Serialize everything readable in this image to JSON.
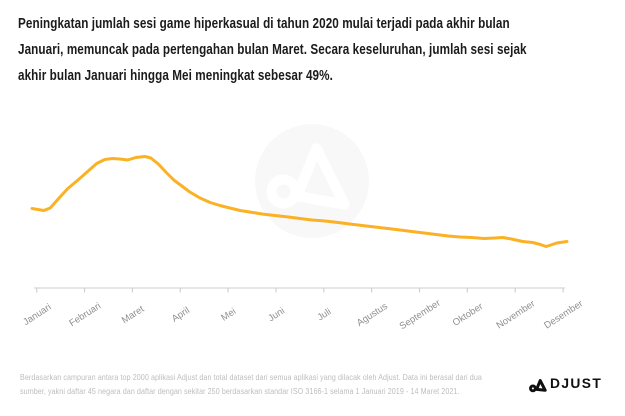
{
  "header": {
    "lines": [
      "Peningkatan jumlah sesi game hiperkasual di tahun 2020 mulai terjadi pada akhir bulan",
      "Januari, memuncak pada pertengahan bulan Maret. Secara keseluruhan, jumlah sesi sejak",
      "akhir bulan Januari hingga Mei meningkat sebesar 49%."
    ]
  },
  "chart_data": {
    "type": "line",
    "title": "Peningkatan jumlah sesi game hiperkasual di tahun 2020 mulai terjadi pada akhir bulan Januari, memuncak pada pertengahan bulan Maret. Secara keseluruhan, jumlah sesi sejak akhir bulan Januari hingga Mei meningkat sebesar 49%.",
    "categories": [
      "Januari",
      "Februari",
      "Maret",
      "April",
      "Mei",
      "Juni",
      "Juli",
      "Agustus",
      "September",
      "Oktober",
      "November",
      "Desember"
    ],
    "xlabel": "",
    "ylabel": "",
    "y_axis_visible": false,
    "y_unit": "relative session index (no y-axis labels shown in figure)",
    "grid": false,
    "legend": "none",
    "series": [
      {
        "name": "Sesi game hiperkasual",
        "color": "#FBB124",
        "points": [
          [
            0.0,
            79.5
          ],
          [
            0.011,
            78.5
          ],
          [
            0.022,
            77.5
          ],
          [
            0.034,
            80
          ],
          [
            0.049,
            89
          ],
          [
            0.067,
            99.5
          ],
          [
            0.086,
            108
          ],
          [
            0.105,
            117
          ],
          [
            0.121,
            124.5
          ],
          [
            0.136,
            128.5
          ],
          [
            0.15,
            129.5
          ],
          [
            0.164,
            129
          ],
          [
            0.179,
            128
          ],
          [
            0.194,
            130.5
          ],
          [
            0.211,
            131.5
          ],
          [
            0.222,
            130
          ],
          [
            0.236,
            124
          ],
          [
            0.25,
            116
          ],
          [
            0.265,
            108
          ],
          [
            0.28,
            102
          ],
          [
            0.295,
            96
          ],
          [
            0.314,
            90
          ],
          [
            0.333,
            85.5
          ],
          [
            0.351,
            82.5
          ],
          [
            0.37,
            80
          ],
          [
            0.389,
            77.5
          ],
          [
            0.407,
            76
          ],
          [
            0.43,
            74
          ],
          [
            0.454,
            72.5
          ],
          [
            0.479,
            71
          ],
          [
            0.501,
            69.5
          ],
          [
            0.523,
            68
          ],
          [
            0.548,
            67
          ],
          [
            0.572,
            65.5
          ],
          [
            0.594,
            64
          ],
          [
            0.617,
            62.5
          ],
          [
            0.641,
            61
          ],
          [
            0.665,
            59.5
          ],
          [
            0.688,
            58
          ],
          [
            0.71,
            56.5
          ],
          [
            0.733,
            55
          ],
          [
            0.755,
            53.5
          ],
          [
            0.778,
            52
          ],
          [
            0.8,
            51
          ],
          [
            0.822,
            50.5
          ],
          [
            0.845,
            49.5
          ],
          [
            0.865,
            50
          ],
          [
            0.88,
            50.5
          ],
          [
            0.896,
            49
          ],
          [
            0.917,
            46.5
          ],
          [
            0.936,
            45.5
          ],
          [
            0.95,
            43.5
          ],
          [
            0.961,
            41.5
          ],
          [
            0.97,
            43
          ],
          [
            0.981,
            45
          ],
          [
            1.0,
            46.5
          ]
        ]
      }
    ],
    "annotations": []
  },
  "colors": {
    "line": "#FBB124",
    "axis_line": "#DDDDDD",
    "tick": "#D0D0D0",
    "axis_label": "#8F8F8F",
    "headline_text": "#1B1B1B",
    "footer_text": "#BDBDBD",
    "watermark_circle": "#F8F8F8",
    "watermark_glyph": "#FFFFFF",
    "brand_text": "#101010"
  },
  "watermark": {
    "icon": "adjust-a-watermark-icon"
  },
  "footer": {
    "lines": [
      "Berdasarkan campuran antara top 2000 aplikasi Adjust dan total dataset dari semua aplikasi yang dilacak oleh Adjust. Data ini berasal dari dua",
      "sumber, yakni daftar 45 negara dan daftar dengan sekitar 250 berdasarkan standar ISO 3166-1 selama 1 Januari 2019 - 14 Maret 2021."
    ],
    "brand": {
      "text": "ADJUST",
      "icon": "adjust-a-icon",
      "text_after_icon": "DJUST"
    }
  }
}
